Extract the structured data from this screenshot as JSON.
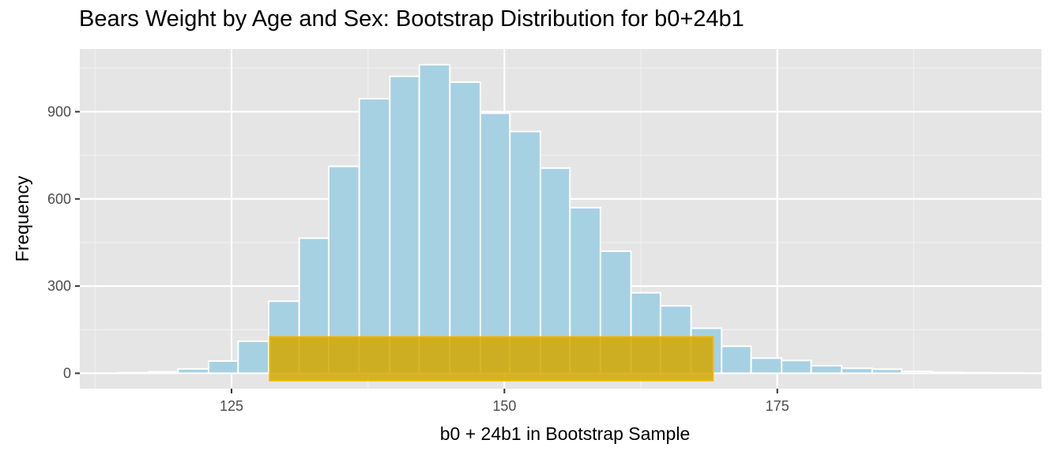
{
  "chart_data": {
    "type": "bar",
    "title": "Bears Weight by Age and Sex: Bootstrap Distribution for b0+24b1",
    "xlabel": "b0 + 24b1 in Bootstrap Sample",
    "ylabel": "Frequency",
    "xlim": [
      111.1,
      199.2
    ],
    "ylim": [
      -53,
      1116
    ],
    "x_ticks": [
      125,
      150,
      175
    ],
    "x_tick_labels": [
      "125",
      "150",
      "175"
    ],
    "y_ticks": [
      0,
      300,
      600,
      900
    ],
    "y_tick_labels": [
      "0",
      "300",
      "600",
      "900"
    ],
    "grid": true,
    "bar_fill": "#a6d1e3",
    "bar_outline": "#ffffff",
    "bins": [
      {
        "x_start": 114.6,
        "x_end": 117.4,
        "count": 2
      },
      {
        "x_start": 117.4,
        "x_end": 120.1,
        "count": 5
      },
      {
        "x_start": 120.1,
        "x_end": 122.9,
        "count": 15
      },
      {
        "x_start": 122.9,
        "x_end": 125.6,
        "count": 42
      },
      {
        "x_start": 125.6,
        "x_end": 128.4,
        "count": 110
      },
      {
        "x_start": 128.4,
        "x_end": 131.2,
        "count": 248
      },
      {
        "x_start": 131.2,
        "x_end": 133.9,
        "count": 465
      },
      {
        "x_start": 133.9,
        "x_end": 136.7,
        "count": 712
      },
      {
        "x_start": 136.7,
        "x_end": 139.5,
        "count": 945
      },
      {
        "x_start": 139.5,
        "x_end": 142.2,
        "count": 1022
      },
      {
        "x_start": 142.2,
        "x_end": 145.0,
        "count": 1062
      },
      {
        "x_start": 145.0,
        "x_end": 147.8,
        "count": 1002
      },
      {
        "x_start": 147.8,
        "x_end": 150.5,
        "count": 895
      },
      {
        "x_start": 150.5,
        "x_end": 153.3,
        "count": 832
      },
      {
        "x_start": 153.3,
        "x_end": 156.0,
        "count": 706
      },
      {
        "x_start": 156.0,
        "x_end": 158.8,
        "count": 570
      },
      {
        "x_start": 158.8,
        "x_end": 161.6,
        "count": 420
      },
      {
        "x_start": 161.6,
        "x_end": 164.3,
        "count": 277
      },
      {
        "x_start": 164.3,
        "x_end": 167.1,
        "count": 232
      },
      {
        "x_start": 167.1,
        "x_end": 169.9,
        "count": 155
      },
      {
        "x_start": 169.9,
        "x_end": 172.6,
        "count": 93
      },
      {
        "x_start": 172.6,
        "x_end": 175.4,
        "count": 52
      },
      {
        "x_start": 175.4,
        "x_end": 178.1,
        "count": 44
      },
      {
        "x_start": 178.1,
        "x_end": 180.9,
        "count": 26
      },
      {
        "x_start": 180.9,
        "x_end": 183.7,
        "count": 17
      },
      {
        "x_start": 183.7,
        "x_end": 186.4,
        "count": 14
      },
      {
        "x_start": 186.4,
        "x_end": 189.2,
        "count": 6
      },
      {
        "x_start": 189.2,
        "x_end": 192.0,
        "count": 3
      },
      {
        "x_start": 192.0,
        "x_end": 194.7,
        "count": 2
      },
      {
        "x_start": 194.7,
        "x_end": 197.5,
        "count": 1
      }
    ],
    "interval_band": {
      "x_start": 128.5,
      "x_end": 169.1,
      "y_start": -25,
      "y_end": 125,
      "fill": "#d4a800",
      "outline": "#f0b400"
    }
  }
}
